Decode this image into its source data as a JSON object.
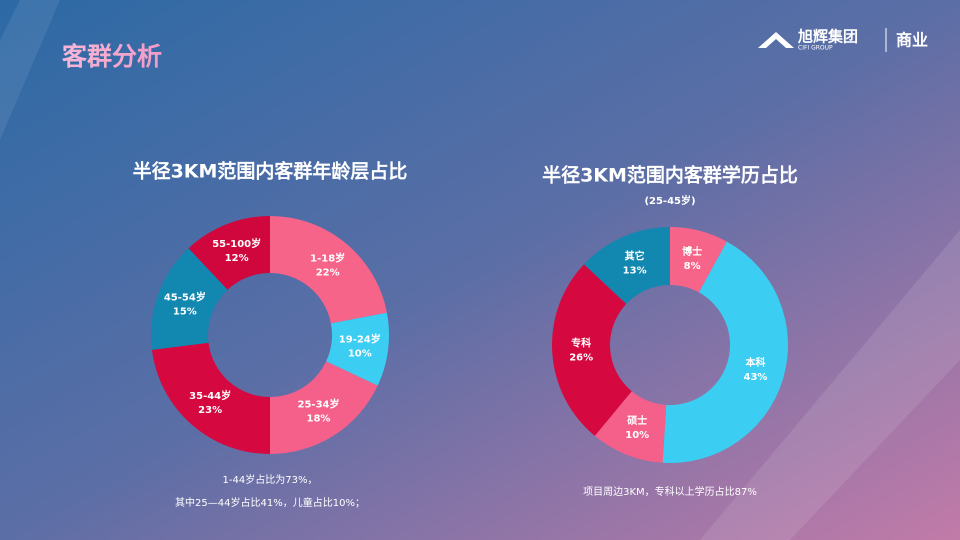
{
  "header": {
    "title": "客群分析",
    "logo_name": "旭辉集团",
    "logo_en": "CIFI GROUP",
    "division": "商业"
  },
  "chart_data": [
    {
      "type": "pie",
      "title": "半径3KM范围内客群年龄层占比",
      "categories": [
        "1-18岁",
        "19-24岁",
        "25-34岁",
        "35-44岁",
        "45-54岁",
        "55-100岁"
      ],
      "values": [
        22,
        10,
        18,
        23,
        15,
        12
      ],
      "value_labels": [
        "22%",
        "10%",
        "18%",
        "23%",
        "15%",
        "12%"
      ],
      "colors": [
        "#f7648a",
        "#3ccdf2",
        "#f4608a",
        "#d5093f",
        "#1287b0",
        "#d0073d"
      ],
      "notes": [
        "1-44岁占比为73%，",
        "其中25—44岁占比41%，儿童占比10%；"
      ]
    },
    {
      "type": "pie",
      "title": "半径3KM范围内客群学历占比",
      "subtitle": "(25-45岁)",
      "categories": [
        "博士",
        "本科",
        "硕士",
        "专科",
        "其它"
      ],
      "values": [
        8,
        43,
        10,
        26,
        13
      ],
      "value_labels": [
        "8%",
        "43%",
        "10%",
        "26%",
        "13%"
      ],
      "colors": [
        "#f7648a",
        "#3ccdf2",
        "#f4608a",
        "#d5093f",
        "#1287b0"
      ],
      "notes": [
        "项目周边3KM，专科以上学历占比87%"
      ]
    }
  ]
}
